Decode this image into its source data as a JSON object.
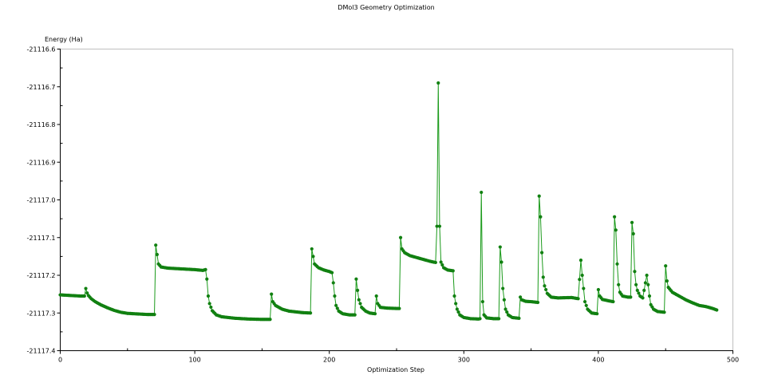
{
  "chart_data": {
    "type": "line",
    "title": "DMol3 Geometry Optimization",
    "xlabel": "Optimization Step",
    "ylabel": "Energy (Ha)",
    "xlim": [
      0,
      500
    ],
    "ylim": [
      -21117.4,
      -21116.6
    ],
    "x_ticks": [
      "0",
      "100",
      "200",
      "300",
      "400",
      "500"
    ],
    "y_ticks": [
      "-21116.6",
      "-21116.7",
      "-21116.8",
      "-21116.9",
      "-21117.0",
      "-21117.1",
      "-21117.2",
      "-21117.3",
      "-21117.4"
    ],
    "grid": false,
    "legend": "none",
    "colors": {
      "series": "#1a9a1a",
      "marker": "#118011",
      "frame": "#bfbfbf"
    },
    "series": [
      {
        "values": [
          [
            0,
            -21117.252
          ],
          [
            5,
            -21117.253
          ],
          [
            10,
            -21117.254
          ],
          [
            15,
            -21117.255
          ],
          [
            18,
            -21117.255
          ],
          [
            19,
            -21117.235
          ],
          [
            20,
            -21117.247
          ],
          [
            21,
            -21117.254
          ],
          [
            23,
            -21117.262
          ],
          [
            26,
            -21117.27
          ],
          [
            30,
            -21117.278
          ],
          [
            35,
            -21117.286
          ],
          [
            40,
            -21117.293
          ],
          [
            45,
            -21117.298
          ],
          [
            50,
            -21117.301
          ],
          [
            55,
            -21117.302
          ],
          [
            60,
            -21117.303
          ],
          [
            65,
            -21117.304
          ],
          [
            70,
            -21117.304
          ],
          [
            71,
            -21117.12
          ],
          [
            72,
            -21117.145
          ],
          [
            73,
            -21117.17
          ],
          [
            75,
            -21117.178
          ],
          [
            80,
            -21117.181
          ],
          [
            90,
            -21117.183
          ],
          [
            100,
            -21117.185
          ],
          [
            106,
            -21117.187
          ],
          [
            108,
            -21117.185
          ],
          [
            109,
            -21117.21
          ],
          [
            110,
            -21117.255
          ],
          [
            111,
            -21117.275
          ],
          [
            113,
            -21117.294
          ],
          [
            116,
            -21117.305
          ],
          [
            120,
            -21117.31
          ],
          [
            130,
            -21117.314
          ],
          [
            140,
            -21117.316
          ],
          [
            150,
            -21117.317
          ],
          [
            156,
            -21117.317
          ],
          [
            157,
            -21117.25
          ],
          [
            158,
            -21117.27
          ],
          [
            160,
            -21117.28
          ],
          [
            165,
            -21117.29
          ],
          [
            170,
            -21117.295
          ],
          [
            180,
            -21117.299
          ],
          [
            186,
            -21117.3
          ],
          [
            187,
            -21117.13
          ],
          [
            188,
            -21117.15
          ],
          [
            189,
            -21117.17
          ],
          [
            192,
            -21117.18
          ],
          [
            196,
            -21117.186
          ],
          [
            200,
            -21117.19
          ],
          [
            202,
            -21117.193
          ],
          [
            203,
            -21117.22
          ],
          [
            204,
            -21117.255
          ],
          [
            205,
            -21117.28
          ],
          [
            207,
            -21117.295
          ],
          [
            210,
            -21117.302
          ],
          [
            215,
            -21117.305
          ],
          [
            219,
            -21117.305
          ],
          [
            220,
            -21117.21
          ],
          [
            221,
            -21117.24
          ],
          [
            222,
            -21117.265
          ],
          [
            224,
            -21117.285
          ],
          [
            227,
            -21117.295
          ],
          [
            230,
            -21117.3
          ],
          [
            234,
            -21117.302
          ],
          [
            235,
            -21117.255
          ],
          [
            236,
            -21117.275
          ],
          [
            238,
            -21117.285
          ],
          [
            243,
            -21117.287
          ],
          [
            250,
            -21117.288
          ],
          [
            252,
            -21117.288
          ],
          [
            253,
            -21117.1
          ],
          [
            254,
            -21117.13
          ],
          [
            256,
            -21117.14
          ],
          [
            260,
            -21117.148
          ],
          [
            265,
            -21117.153
          ],
          [
            270,
            -21117.158
          ],
          [
            275,
            -21117.163
          ],
          [
            279,
            -21117.166
          ],
          [
            280,
            -21117.07
          ],
          [
            281,
            -21116.69
          ],
          [
            282,
            -21117.07
          ],
          [
            283,
            -21117.165
          ],
          [
            285,
            -21117.18
          ],
          [
            288,
            -21117.186
          ],
          [
            292,
            -21117.188
          ],
          [
            293,
            -21117.255
          ],
          [
            294,
            -21117.275
          ],
          [
            295,
            -21117.29
          ],
          [
            297,
            -21117.305
          ],
          [
            300,
            -21117.312
          ],
          [
            305,
            -21117.315
          ],
          [
            311,
            -21117.316
          ],
          [
            312,
            -21117.315
          ],
          [
            313,
            -21116.98
          ],
          [
            314,
            -21117.27
          ],
          [
            315,
            -21117.305
          ],
          [
            317,
            -21117.313
          ],
          [
            322,
            -21117.315
          ],
          [
            326,
            -21117.315
          ],
          [
            327,
            -21117.125
          ],
          [
            328,
            -21117.165
          ],
          [
            329,
            -21117.235
          ],
          [
            330,
            -21117.265
          ],
          [
            331,
            -21117.29
          ],
          [
            333,
            -21117.305
          ],
          [
            336,
            -21117.312
          ],
          [
            341,
            -21117.314
          ],
          [
            342,
            -21117.258
          ],
          [
            343,
            -21117.265
          ],
          [
            346,
            -21117.269
          ],
          [
            350,
            -21117.27
          ],
          [
            355,
            -21117.272
          ],
          [
            356,
            -21116.99
          ],
          [
            357,
            -21117.045
          ],
          [
            358,
            -21117.14
          ],
          [
            359,
            -21117.205
          ],
          [
            360,
            -21117.228
          ],
          [
            362,
            -21117.248
          ],
          [
            365,
            -21117.258
          ],
          [
            370,
            -21117.26
          ],
          [
            380,
            -21117.259
          ],
          [
            385,
            -21117.262
          ],
          [
            387,
            -21117.16
          ],
          [
            388,
            -21117.2
          ],
          [
            389,
            -21117.235
          ],
          [
            390,
            -21117.27
          ],
          [
            392,
            -21117.29
          ],
          [
            395,
            -21117.3
          ],
          [
            399,
            -21117.302
          ],
          [
            400,
            -21117.238
          ],
          [
            401,
            -21117.255
          ],
          [
            403,
            -21117.264
          ],
          [
            408,
            -21117.268
          ],
          [
            411,
            -21117.27
          ],
          [
            412,
            -21117.045
          ],
          [
            413,
            -21117.08
          ],
          [
            414,
            -21117.17
          ],
          [
            415,
            -21117.225
          ],
          [
            416,
            -21117.245
          ],
          [
            418,
            -21117.255
          ],
          [
            422,
            -21117.258
          ],
          [
            424,
            -21117.258
          ],
          [
            425,
            -21117.06
          ],
          [
            426,
            -21117.09
          ],
          [
            427,
            -21117.19
          ],
          [
            428,
            -21117.225
          ],
          [
            429,
            -21117.24
          ],
          [
            431,
            -21117.255
          ],
          [
            433,
            -21117.26
          ],
          [
            436,
            -21117.2
          ],
          [
            437,
            -21117.225
          ],
          [
            438,
            -21117.255
          ],
          [
            439,
            -21117.278
          ],
          [
            441,
            -21117.29
          ],
          [
            444,
            -21117.296
          ],
          [
            449,
            -21117.298
          ],
          [
            450,
            -21117.175
          ],
          [
            451,
            -21117.215
          ],
          [
            452,
            -21117.232
          ],
          [
            455,
            -21117.245
          ],
          [
            460,
            -21117.255
          ],
          [
            465,
            -21117.265
          ],
          [
            470,
            -21117.273
          ],
          [
            475,
            -21117.28
          ],
          [
            480,
            -21117.283
          ],
          [
            485,
            -21117.288
          ],
          [
            488,
            -21117.292
          ]
        ]
      }
    ]
  }
}
